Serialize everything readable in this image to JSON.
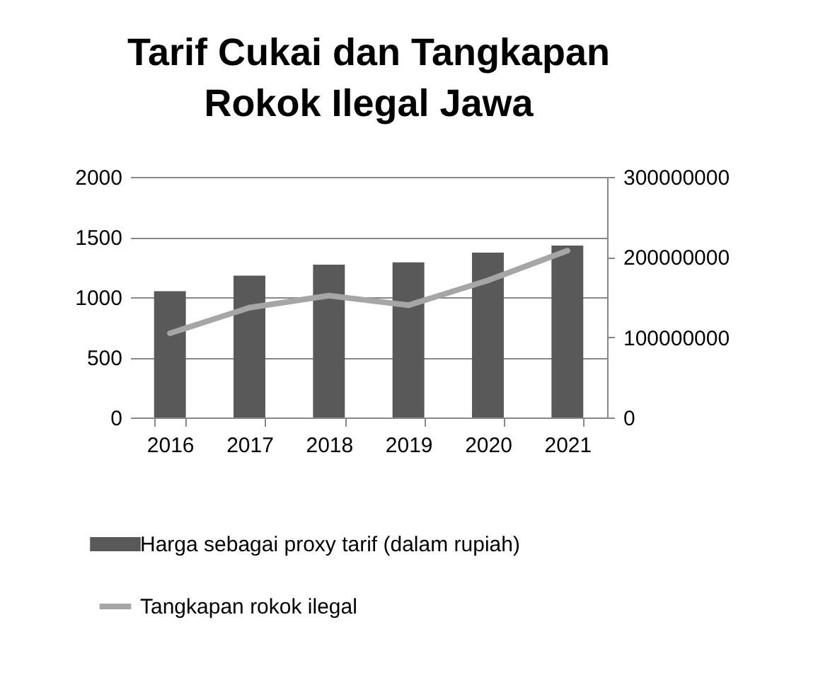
{
  "chart_data": {
    "type": "bar",
    "title": "Tarif Cukai dan Tangkapan Rokok Ilegal Jawa",
    "categories": [
      "2016",
      "2017",
      "2018",
      "2019",
      "2020",
      "2021"
    ],
    "series": [
      {
        "name": "Harga sebagai proxy tarif (dalam rupiah)",
        "color": "#595959",
        "values": [
          1050,
          1180,
          1270,
          1290,
          1370,
          1430
        ]
      },
      {
        "name": "Tangkapan rokok ilegal",
        "type": "line",
        "axis": "y2",
        "color": "#a6a6a6",
        "values": [
          105000000,
          137000000,
          152000000,
          140000000,
          171000000,
          208000000
        ]
      }
    ],
    "ylim": [
      0,
      2000
    ],
    "yticks": [
      0,
      500,
      1000,
      1500,
      2000
    ],
    "y2lim": [
      0,
      300000000
    ],
    "y2ticks": [
      0,
      100000000,
      200000000,
      300000000
    ],
    "grid": "y",
    "legend": "bottom"
  }
}
